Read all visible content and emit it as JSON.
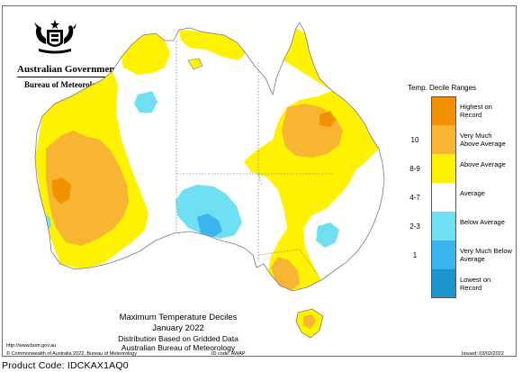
{
  "header": {
    "gov_name": "Australian Government",
    "bureau_name": "Bureau of Meteorology"
  },
  "map": {
    "title": "Maximum Temperature Deciles",
    "period": "January 2022",
    "method": "Distribution Based on Gridded Data",
    "source": "Australian Bureau of Meteorology"
  },
  "legend": {
    "title": "Temp. Decile Ranges",
    "items": [
      {
        "range": "",
        "label": "Highest on Record",
        "color": "#f39200"
      },
      {
        "range": "10",
        "label": "Very Much Above Average",
        "color": "#f7b531"
      },
      {
        "range": "8-9",
        "label": "Above Average",
        "color": "#fff200"
      },
      {
        "range": "4-7",
        "label": "Average",
        "color": "#ffffff"
      },
      {
        "range": "2-3",
        "label": "Below Average",
        "color": "#6ee0f2"
      },
      {
        "range": "1",
        "label": "Very Much Below Average",
        "color": "#3ab4ee"
      },
      {
        "range": "",
        "label": "Lowest on Record",
        "color": "#1c94d0"
      }
    ]
  },
  "footer": {
    "copyright": "© Commonwealth of Australia 2022, Bureau of Meteorology",
    "id_code": "ID code: AWAP",
    "issued": "Issued: 03/02/2022",
    "website": "http://www.bom.gov.au"
  },
  "product_code": "Product Code: IDCKAX1AQ0"
}
